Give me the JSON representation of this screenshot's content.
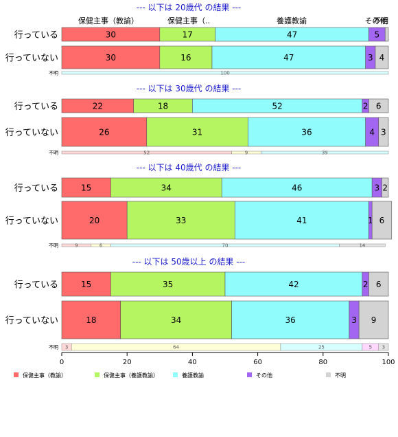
{
  "chart_data": {
    "type": "bar",
    "orientation": "horizontal",
    "stacked": true,
    "xlim": [
      0,
      100
    ],
    "xticks": [
      0,
      20,
      40,
      60,
      80,
      100
    ],
    "categories": [
      "保健主事（教諭）",
      "保健主事（養護教諭）",
      "養護教諭",
      "その他",
      "不明"
    ],
    "column_headers": [
      "保健主事（教諭）",
      "保健主事（..",
      "養護教諭",
      "その他",
      "不明"
    ],
    "colors": [
      "#ff6b6b",
      "#b6f562",
      "#91fcfc",
      "#a366f0",
      "#d3d3d3"
    ],
    "small_colors": [
      "#ffd8d8",
      "#ffffd8",
      "#d8ffff",
      "#ffd8ff",
      "#e4e4e4"
    ],
    "groups": [
      {
        "title": "--- 以下は 20歳代 の結果 ---",
        "rows": [
          {
            "label": "行っている",
            "values": [
              30,
              17,
              47,
              5,
              1
            ],
            "labels": [
              "30",
              "17",
              "47",
              "5",
              ""
            ]
          },
          {
            "label": "行っていない",
            "values": [
              30,
              16,
              47,
              3,
              4
            ],
            "labels": [
              "30",
              "16",
              "47",
              "3",
              "4"
            ]
          }
        ],
        "small_row": {
          "label": "不明",
          "values": [
            0,
            0,
            100,
            0,
            0
          ],
          "labels": [
            "",
            "",
            "100",
            "",
            ""
          ]
        }
      },
      {
        "title": "--- 以下は 30歳代 の結果 ---",
        "rows": [
          {
            "label": "行っている",
            "values": [
              22,
              18,
              52,
              2,
              6
            ],
            "labels": [
              "22",
              "18",
              "52",
              "2",
              "6"
            ]
          },
          {
            "label": "行っていない",
            "values": [
              26,
              31,
              36,
              4,
              3
            ],
            "labels": [
              "26",
              "31",
              "36",
              "4",
              "3"
            ]
          }
        ],
        "small_row": {
          "label": "不明",
          "values": [
            52,
            9,
            39,
            0,
            0
          ],
          "labels": [
            "52",
            "9",
            "39",
            "",
            ""
          ]
        }
      },
      {
        "title": "--- 以下は 40歳代 の結果 ---",
        "rows": [
          {
            "label": "行っている",
            "values": [
              15,
              34,
              46,
              3,
              2
            ],
            "labels": [
              "15",
              "34",
              "46",
              "3",
              "2"
            ]
          },
          {
            "label": "行っていない",
            "values": [
              20,
              33,
              41,
              1,
              6
            ],
            "labels": [
              "20",
              "33",
              "41",
              "1",
              "6"
            ]
          }
        ],
        "small_row": {
          "label": "不明",
          "values": [
            9,
            6,
            70,
            0,
            14
          ],
          "labels": [
            "9",
            "6",
            "70",
            "",
            "14"
          ]
        }
      },
      {
        "title": "--- 以下は 50歳以上 の結果 ---",
        "rows": [
          {
            "label": "行っている",
            "values": [
              15,
              35,
              42,
              2,
              6
            ],
            "labels": [
              "15",
              "35",
              "42",
              "2",
              "6"
            ]
          },
          {
            "label": "行っていない",
            "values": [
              18,
              34,
              36,
              3,
              9
            ],
            "labels": [
              "18",
              "34",
              "36",
              "3",
              "9"
            ]
          }
        ],
        "small_row": {
          "label": "不明",
          "values": [
            3,
            64,
            25,
            5,
            3
          ],
          "labels": [
            "3",
            "64",
            "25",
            "5",
            "3"
          ]
        }
      }
    ],
    "legend": [
      "保健主事（教諭）",
      "保健主事（養護教諭）",
      "養護教諭",
      "その他",
      "不明"
    ],
    "legend_position": "bottom"
  }
}
